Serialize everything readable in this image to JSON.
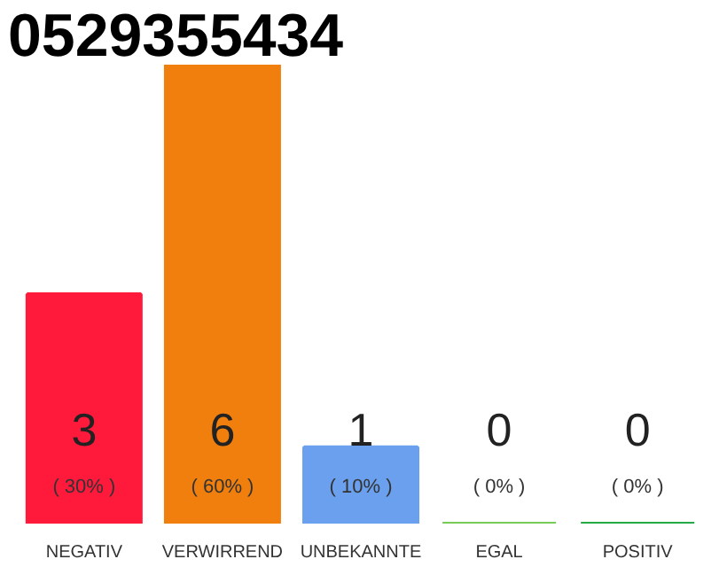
{
  "chart_data": {
    "type": "bar",
    "title": "0529355434",
    "categories": [
      "NEGATIV",
      "VERWIRREND",
      "UNBEKANNTE",
      "EGAL",
      "POSITIV"
    ],
    "values": [
      3,
      6,
      1,
      0,
      0
    ],
    "colors": [
      "#ff1a3c",
      "#f07f0e",
      "#6aa0ee",
      "#77cc55",
      "#22aa44"
    ],
    "ylim": [
      0,
      6
    ],
    "data_labels": true,
    "annotations": [
      "( 30% )",
      "( 60% )",
      "( 10% )",
      "( 0% )",
      "( 0% )"
    ]
  }
}
